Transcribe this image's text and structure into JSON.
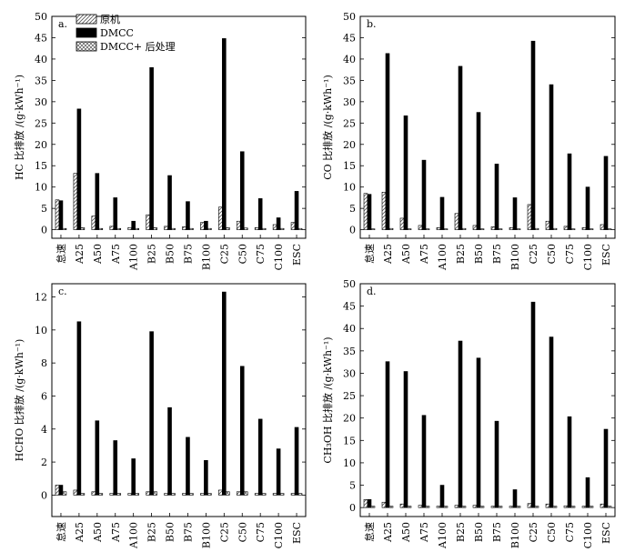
{
  "legend": {
    "items": [
      {
        "label": "原机",
        "pattern": "hatch"
      },
      {
        "label": "DMCC",
        "pattern": "solid"
      },
      {
        "label": "DMCC+ 后处理",
        "pattern": "cross"
      }
    ]
  },
  "chart_data": [
    {
      "type": "bar",
      "panel_label": "a.",
      "ylabel": "HC 比排放 /(g·kWh⁻¹)",
      "ylim": [
        -2,
        50
      ],
      "yticks": [
        0,
        5,
        10,
        15,
        20,
        25,
        30,
        35,
        40,
        45,
        50
      ],
      "categories": [
        "怠速",
        "A25",
        "A50",
        "A75",
        "A100",
        "B25",
        "B50",
        "B75",
        "B100",
        "C25",
        "C50",
        "C75",
        "C100",
        "ESC"
      ],
      "series": [
        {
          "name": "原机",
          "values": [
            7.0,
            13.2,
            3.2,
            0.8,
            0.5,
            3.5,
            0.8,
            0.7,
            1.7,
            5.3,
            2.0,
            0.5,
            1.2,
            1.7
          ]
        },
        {
          "name": "DMCC",
          "values": [
            6.8,
            28.3,
            13.2,
            7.5,
            2.0,
            38.0,
            12.7,
            6.6,
            2.0,
            44.8,
            18.3,
            7.3,
            2.8,
            9.0
          ]
        },
        {
          "name": "DMCC+ 后处理",
          "values": [
            0.3,
            0.5,
            0.3,
            0.3,
            0.3,
            0.5,
            0.3,
            0.3,
            0.3,
            0.5,
            0.4,
            0.3,
            0.3,
            0.3
          ]
        }
      ]
    },
    {
      "type": "bar",
      "panel_label": "b.",
      "ylabel": "CO 比排放 /(g·kWh⁻¹)",
      "ylim": [
        -2,
        50
      ],
      "yticks": [
        0,
        5,
        10,
        15,
        20,
        25,
        30,
        35,
        40,
        45,
        50
      ],
      "categories": [
        "怠速",
        "A25",
        "A50",
        "A75",
        "A100",
        "B25",
        "B50",
        "B75",
        "B100",
        "C25",
        "C50",
        "C75",
        "C100",
        "ESC"
      ],
      "series": [
        {
          "name": "原机",
          "values": [
            8.5,
            8.8,
            2.7,
            1.0,
            0.5,
            3.8,
            1.0,
            0.7,
            0.5,
            5.9,
            2.0,
            0.8,
            0.5,
            1.2
          ]
        },
        {
          "name": "DMCC",
          "values": [
            8.3,
            41.3,
            26.7,
            16.3,
            7.6,
            38.3,
            27.5,
            15.4,
            7.5,
            44.2,
            34.0,
            17.8,
            10.0,
            17.2
          ]
        },
        {
          "name": "DMCC+ 后处理",
          "values": [
            0.2,
            0.3,
            0.2,
            0.2,
            0.2,
            0.3,
            0.2,
            0.2,
            0.2,
            0.3,
            0.3,
            0.2,
            0.2,
            0.2
          ]
        }
      ]
    },
    {
      "type": "bar",
      "panel_label": "c.",
      "ylabel": "HCHO 比排放 /(g·kWh⁻¹)",
      "ylim": [
        -1.3,
        12.8
      ],
      "yticks": [
        0,
        2,
        4,
        6,
        8,
        10,
        12
      ],
      "categories": [
        "怠速",
        "A25",
        "A50",
        "A75",
        "A100",
        "B25",
        "B50",
        "B75",
        "B100",
        "C25",
        "C50",
        "C75",
        "C100",
        "ESC"
      ],
      "series": [
        {
          "name": "原机",
          "values": [
            0.6,
            0.3,
            0.2,
            0.1,
            0.1,
            0.2,
            0.1,
            0.1,
            0.1,
            0.3,
            0.2,
            0.1,
            0.1,
            0.1
          ]
        },
        {
          "name": "DMCC",
          "values": [
            0.6,
            10.5,
            4.5,
            3.3,
            2.2,
            9.9,
            5.3,
            3.5,
            2.1,
            12.3,
            7.8,
            4.6,
            2.8,
            4.1
          ]
        },
        {
          "name": "DMCC+ 后处理",
          "values": [
            0.2,
            0.1,
            0.1,
            0.1,
            0.1,
            0.2,
            0.1,
            0.1,
            0.1,
            0.2,
            0.2,
            0.1,
            0.1,
            0.1
          ]
        }
      ]
    },
    {
      "type": "bar",
      "panel_label": "d.",
      "ylabel": "CH₃OH 比排放 /(g·kWh⁻¹)",
      "ylim": [
        -2,
        50
      ],
      "yticks": [
        0,
        5,
        10,
        15,
        20,
        25,
        30,
        35,
        40,
        45,
        50
      ],
      "categories": [
        "怠速",
        "A25",
        "A50",
        "A75",
        "A100",
        "B25",
        "B50",
        "B75",
        "B100",
        "C25",
        "C50",
        "C75",
        "C100",
        "ESC"
      ],
      "series": [
        {
          "name": "原机",
          "values": [
            1.8,
            1.2,
            0.8,
            0.5,
            0.3,
            0.5,
            0.5,
            0.3,
            0.3,
            0.9,
            0.8,
            0.4,
            0.3,
            0.8
          ]
        },
        {
          "name": "DMCC",
          "values": [
            1.8,
            32.6,
            30.4,
            20.6,
            5.0,
            37.2,
            33.4,
            19.3,
            4.0,
            45.9,
            38.1,
            20.3,
            6.7,
            17.5
          ]
        },
        {
          "name": "DMCC+ 后处理",
          "values": [
            0.3,
            0.3,
            0.3,
            0.3,
            0.3,
            0.3,
            0.3,
            0.3,
            0.3,
            0.3,
            0.3,
            0.3,
            0.3,
            0.3
          ]
        }
      ]
    }
  ]
}
